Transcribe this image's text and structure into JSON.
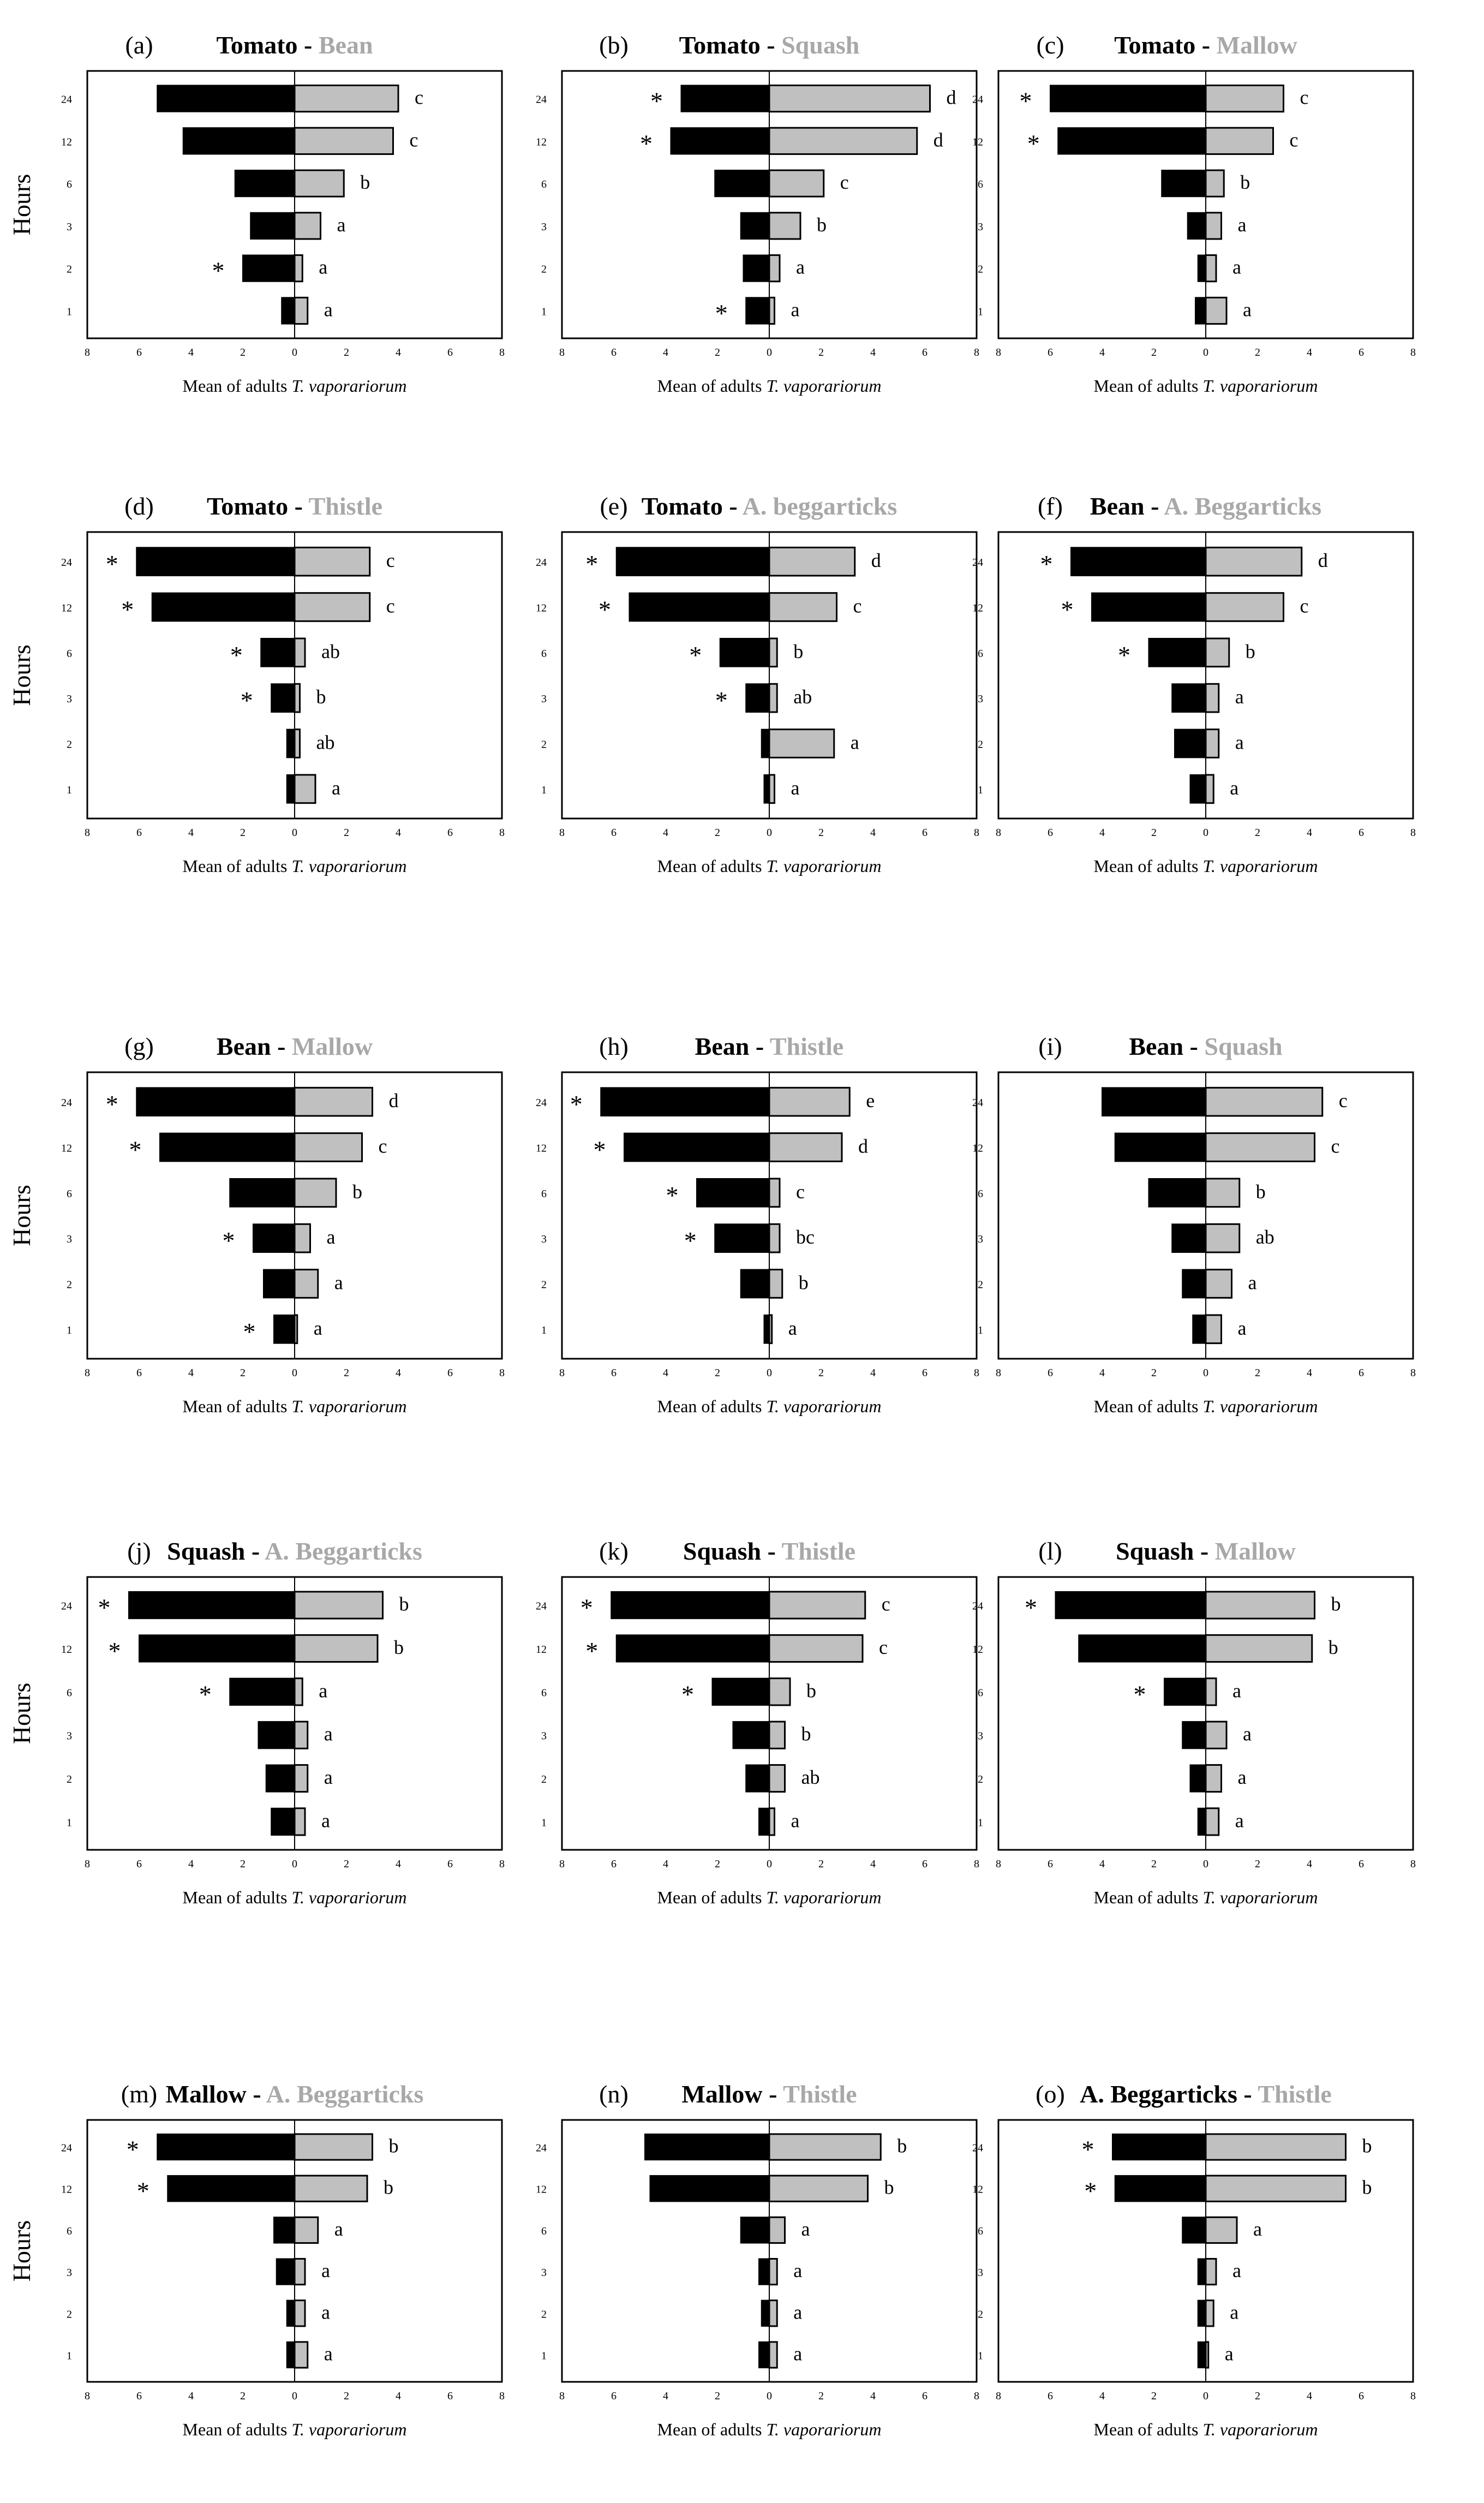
{
  "figure": {
    "ylabel": "Hours",
    "xlabel_prefix": "Mean of adults",
    "xlabel_species": "T. vaporariorum",
    "colors": {
      "left": "#000000",
      "right": "#c0c0c0",
      "title_right": "#a8a8a8",
      "axis": "#000000"
    }
  },
  "chart_data": [
    {
      "type": "bar",
      "panel": "(a)",
      "title_left": "Tomato",
      "title_right": "Bean",
      "show_ylabel": true,
      "categories": [
        "24",
        "12",
        "6",
        "3",
        "2",
        "1"
      ],
      "xlim": [
        -8,
        8
      ],
      "xticks": [
        "8",
        "6",
        "4",
        "2",
        "0",
        "2",
        "4",
        "6",
        "8"
      ],
      "series": [
        {
          "name": "Tomato",
          "values": [
            5.3,
            4.3,
            2.3,
            1.7,
            2.0,
            0.5
          ]
        },
        {
          "name": "Bean",
          "values": [
            4.0,
            3.8,
            1.9,
            1.0,
            0.3,
            0.5
          ]
        }
      ],
      "stars": [
        false,
        false,
        false,
        false,
        true,
        false
      ],
      "letters": [
        "c",
        "c",
        "b",
        "a",
        "a",
        "a"
      ]
    },
    {
      "type": "bar",
      "panel": "(b)",
      "title_left": "Tomato",
      "title_right": "Squash",
      "show_ylabel": false,
      "categories": [
        "24",
        "12",
        "6",
        "3",
        "2",
        "1"
      ],
      "xlim": [
        -8,
        8
      ],
      "xticks": [
        "8",
        "6",
        "4",
        "2",
        "0",
        "2",
        "4",
        "6",
        "8"
      ],
      "series": [
        {
          "name": "Tomato",
          "values": [
            3.4,
            3.8,
            2.1,
            1.1,
            1.0,
            0.9
          ]
        },
        {
          "name": "Squash",
          "values": [
            6.2,
            5.7,
            2.1,
            1.2,
            0.4,
            0.2
          ]
        }
      ],
      "stars": [
        true,
        true,
        false,
        false,
        false,
        true
      ],
      "letters": [
        "d",
        "d",
        "c",
        "b",
        "a",
        "a"
      ]
    },
    {
      "type": "bar",
      "panel": "(c)",
      "title_left": "Tomato",
      "title_right": "Mallow",
      "show_ylabel": false,
      "categories": [
        "24",
        "12",
        "6",
        "3",
        "2",
        "1"
      ],
      "xlim": [
        -8,
        8
      ],
      "xticks": [
        "8",
        "6",
        "4",
        "2",
        "0",
        "2",
        "4",
        "6",
        "8"
      ],
      "series": [
        {
          "name": "Tomato",
          "values": [
            6.0,
            5.7,
            1.7,
            0.7,
            0.3,
            0.4
          ]
        },
        {
          "name": "Mallow",
          "values": [
            3.0,
            2.6,
            0.7,
            0.6,
            0.4,
            0.8
          ]
        }
      ],
      "stars": [
        true,
        true,
        false,
        false,
        false,
        false
      ],
      "letters": [
        "c",
        "c",
        "b",
        "a",
        "a",
        "a"
      ]
    },
    {
      "type": "bar",
      "panel": "(d)",
      "title_left": "Tomato",
      "title_right": "Thistle",
      "show_ylabel": true,
      "categories": [
        "24",
        "12",
        "6",
        "3",
        "2",
        "1"
      ],
      "xlim": [
        -8,
        8
      ],
      "xticks": [
        "8",
        "6",
        "4",
        "2",
        "0",
        "2",
        "4",
        "6",
        "8"
      ],
      "series": [
        {
          "name": "Tomato",
          "values": [
            6.1,
            5.5,
            1.3,
            0.9,
            0.3,
            0.3
          ]
        },
        {
          "name": "Thistle",
          "values": [
            2.9,
            2.9,
            0.4,
            0.2,
            0.2,
            0.8
          ]
        }
      ],
      "stars": [
        true,
        true,
        true,
        true,
        false,
        false
      ],
      "letters": [
        "c",
        "c",
        "ab",
        "b",
        "ab",
        "a"
      ]
    },
    {
      "type": "bar",
      "panel": "(e)",
      "title_left": "Tomato",
      "title_right": "A. beggarticks",
      "show_ylabel": false,
      "categories": [
        "24",
        "12",
        "6",
        "3",
        "2",
        "1"
      ],
      "xlim": [
        -8,
        8
      ],
      "xticks": [
        "8",
        "6",
        "4",
        "2",
        "0",
        "2",
        "4",
        "6",
        "8"
      ],
      "series": [
        {
          "name": "Tomato",
          "values": [
            5.9,
            5.4,
            1.9,
            0.9,
            0.3,
            0.2
          ]
        },
        {
          "name": "A. beggarticks",
          "values": [
            3.3,
            2.6,
            0.3,
            0.3,
            2.5,
            0.2
          ]
        }
      ],
      "stars": [
        true,
        true,
        true,
        true,
        false,
        false
      ],
      "letters": [
        "d",
        "c",
        "b",
        "ab",
        "a",
        "a"
      ]
    },
    {
      "type": "bar",
      "panel": "(f)",
      "title_left": "Bean",
      "title_right": "A. Beggarticks",
      "show_ylabel": false,
      "categories": [
        "24",
        "12",
        "6",
        "3",
        "2",
        "1"
      ],
      "xlim": [
        -8,
        8
      ],
      "xticks": [
        "8",
        "6",
        "4",
        "2",
        "0",
        "2",
        "4",
        "6",
        "8"
      ],
      "series": [
        {
          "name": "Bean",
          "values": [
            5.2,
            4.4,
            2.2,
            1.3,
            1.2,
            0.6
          ]
        },
        {
          "name": "A. Beggarticks",
          "values": [
            3.7,
            3.0,
            0.9,
            0.5,
            0.5,
            0.3
          ]
        }
      ],
      "stars": [
        true,
        true,
        true,
        false,
        false,
        false
      ],
      "letters": [
        "d",
        "c",
        "b",
        "a",
        "a",
        "a"
      ]
    },
    {
      "type": "bar",
      "panel": "(g)",
      "title_left": "Bean",
      "title_right": "Mallow",
      "show_ylabel": true,
      "categories": [
        "24",
        "12",
        "6",
        "3",
        "2",
        "1"
      ],
      "xlim": [
        -8,
        8
      ],
      "xticks": [
        "8",
        "6",
        "4",
        "2",
        "0",
        "2",
        "4",
        "6",
        "8"
      ],
      "series": [
        {
          "name": "Bean",
          "values": [
            6.1,
            5.2,
            2.5,
            1.6,
            1.2,
            0.8
          ]
        },
        {
          "name": "Mallow",
          "values": [
            3.0,
            2.6,
            1.6,
            0.6,
            0.9,
            0.1
          ]
        }
      ],
      "stars": [
        true,
        true,
        false,
        true,
        false,
        true
      ],
      "letters": [
        "d",
        "c",
        "b",
        "a",
        "a",
        "a"
      ]
    },
    {
      "type": "bar",
      "panel": "(h)",
      "title_left": "Bean",
      "title_right": "Thistle",
      "show_ylabel": false,
      "categories": [
        "24",
        "12",
        "6",
        "3",
        "2",
        "1"
      ],
      "xlim": [
        -8,
        8
      ],
      "xticks": [
        "8",
        "6",
        "4",
        "2",
        "0",
        "2",
        "4",
        "6",
        "8"
      ],
      "series": [
        {
          "name": "Bean",
          "values": [
            6.5,
            5.6,
            2.8,
            2.1,
            1.1,
            0.2
          ]
        },
        {
          "name": "Thistle",
          "values": [
            3.1,
            2.8,
            0.4,
            0.4,
            0.5,
            0.1
          ]
        }
      ],
      "stars": [
        true,
        true,
        true,
        true,
        false,
        false
      ],
      "letters": [
        "e",
        "d",
        "c",
        "bc",
        "b",
        "a"
      ]
    },
    {
      "type": "bar",
      "panel": "(i)",
      "title_left": "Bean",
      "title_right": "Squash",
      "show_ylabel": false,
      "categories": [
        "24",
        "12",
        "6",
        "3",
        "2",
        "1"
      ],
      "xlim": [
        -8,
        8
      ],
      "xticks": [
        "8",
        "6",
        "4",
        "2",
        "0",
        "2",
        "4",
        "6",
        "8"
      ],
      "series": [
        {
          "name": "Bean",
          "values": [
            4.0,
            3.5,
            2.2,
            1.3,
            0.9,
            0.5
          ]
        },
        {
          "name": "Squash",
          "values": [
            4.5,
            4.2,
            1.3,
            1.3,
            1.0,
            0.6
          ]
        }
      ],
      "stars": [
        false,
        false,
        false,
        false,
        false,
        false
      ],
      "letters": [
        "c",
        "c",
        "b",
        "ab",
        "a",
        "a"
      ]
    },
    {
      "type": "bar",
      "panel": "(j)",
      "title_left": "Squash",
      "title_right": "A. Beggarticks",
      "show_ylabel": true,
      "categories": [
        "24",
        "12",
        "6",
        "3",
        "2",
        "1"
      ],
      "xlim": [
        -8,
        8
      ],
      "xticks": [
        "8",
        "6",
        "4",
        "2",
        "0",
        "2",
        "4",
        "6",
        "8"
      ],
      "series": [
        {
          "name": "Squash",
          "values": [
            6.4,
            6.0,
            2.5,
            1.4,
            1.1,
            0.9
          ]
        },
        {
          "name": "A. Beggarticks",
          "values": [
            3.4,
            3.2,
            0.3,
            0.5,
            0.5,
            0.4
          ]
        }
      ],
      "stars": [
        true,
        true,
        true,
        false,
        false,
        false
      ],
      "letters": [
        "b",
        "b",
        "a",
        "a",
        "a",
        "a"
      ]
    },
    {
      "type": "bar",
      "panel": "(k)",
      "title_left": "Squash",
      "title_right": "Thistle",
      "show_ylabel": false,
      "categories": [
        "24",
        "12",
        "6",
        "3",
        "2",
        "1"
      ],
      "xlim": [
        -8,
        8
      ],
      "xticks": [
        "8",
        "6",
        "4",
        "2",
        "0",
        "2",
        "4",
        "6",
        "8"
      ],
      "series": [
        {
          "name": "Squash",
          "values": [
            6.1,
            5.9,
            2.2,
            1.4,
            0.9,
            0.4
          ]
        },
        {
          "name": "Thistle",
          "values": [
            3.7,
            3.6,
            0.8,
            0.6,
            0.6,
            0.2
          ]
        }
      ],
      "stars": [
        true,
        true,
        true,
        false,
        false,
        false
      ],
      "letters": [
        "c",
        "c",
        "b",
        "b",
        "ab",
        "a"
      ]
    },
    {
      "type": "bar",
      "panel": "(l)",
      "title_left": "Squash",
      "title_right": "Mallow",
      "show_ylabel": false,
      "categories": [
        "24",
        "12",
        "6",
        "3",
        "2",
        "1"
      ],
      "xlim": [
        -8,
        8
      ],
      "xticks": [
        "8",
        "6",
        "4",
        "2",
        "0",
        "2",
        "4",
        "6",
        "8"
      ],
      "series": [
        {
          "name": "Squash",
          "values": [
            5.8,
            4.9,
            1.6,
            0.9,
            0.6,
            0.3
          ]
        },
        {
          "name": "Mallow",
          "values": [
            4.2,
            4.1,
            0.4,
            0.8,
            0.6,
            0.5
          ]
        }
      ],
      "stars": [
        true,
        false,
        true,
        false,
        false,
        false
      ],
      "letters": [
        "b",
        "b",
        "a",
        "a",
        "a",
        "a"
      ]
    },
    {
      "type": "bar",
      "panel": "(m)",
      "title_left": "Mallow",
      "title_right": "A. Beggarticks",
      "show_ylabel": true,
      "categories": [
        "24",
        "12",
        "6",
        "3",
        "2",
        "1"
      ],
      "xlim": [
        -8,
        8
      ],
      "xticks": [
        "8",
        "6",
        "4",
        "2",
        "0",
        "2",
        "4",
        "6",
        "8"
      ],
      "series": [
        {
          "name": "Mallow",
          "values": [
            5.3,
            4.9,
            0.8,
            0.7,
            0.3,
            0.3
          ]
        },
        {
          "name": "A. Beggarticks",
          "values": [
            3.0,
            2.8,
            0.9,
            0.4,
            0.4,
            0.5
          ]
        }
      ],
      "stars": [
        true,
        true,
        false,
        false,
        false,
        false
      ],
      "letters": [
        "b",
        "b",
        "a",
        "a",
        "a",
        "a"
      ]
    },
    {
      "type": "bar",
      "panel": "(n)",
      "title_left": "Mallow",
      "title_right": "Thistle",
      "show_ylabel": false,
      "categories": [
        "24",
        "12",
        "6",
        "3",
        "2",
        "1"
      ],
      "xlim": [
        -8,
        8
      ],
      "xticks": [
        "8",
        "6",
        "4",
        "2",
        "0",
        "2",
        "4",
        "6",
        "8"
      ],
      "series": [
        {
          "name": "Mallow",
          "values": [
            4.8,
            4.6,
            1.1,
            0.4,
            0.3,
            0.4
          ]
        },
        {
          "name": "Thistle",
          "values": [
            4.3,
            3.8,
            0.6,
            0.3,
            0.3,
            0.3
          ]
        }
      ],
      "stars": [
        false,
        false,
        false,
        false,
        false,
        false
      ],
      "letters": [
        "b",
        "b",
        "a",
        "a",
        "a",
        "a"
      ]
    },
    {
      "type": "bar",
      "panel": "(o)",
      "title_left": "A. Beggarticks",
      "title_right": "Thistle",
      "show_ylabel": false,
      "categories": [
        "24",
        "12",
        "6",
        "3",
        "2",
        "1"
      ],
      "xlim": [
        -8,
        8
      ],
      "xticks": [
        "8",
        "6",
        "4",
        "2",
        "0",
        "2",
        "4",
        "6",
        "8"
      ],
      "series": [
        {
          "name": "A. Beggarticks",
          "values": [
            3.6,
            3.5,
            0.9,
            0.3,
            0.3,
            0.3
          ]
        },
        {
          "name": "Thistle",
          "values": [
            5.4,
            5.4,
            1.2,
            0.4,
            0.3,
            0.1
          ]
        }
      ],
      "stars": [
        true,
        true,
        false,
        false,
        false,
        false
      ],
      "letters": [
        "b",
        "b",
        "a",
        "a",
        "a",
        "a"
      ]
    }
  ]
}
